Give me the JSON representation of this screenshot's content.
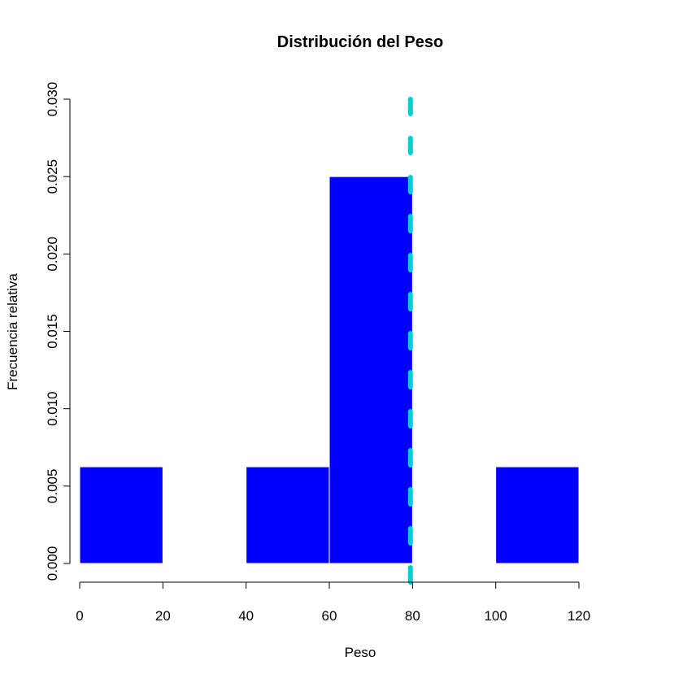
{
  "chart_data": {
    "type": "bar",
    "title": "Distribución del Peso",
    "xlabel": "Peso",
    "ylabel": "Frecuencia relativa",
    "xlim": [
      0,
      120
    ],
    "ylim": [
      0,
      0.03
    ],
    "x_ticks": [
      "0",
      "20",
      "40",
      "60",
      "80",
      "100",
      "120"
    ],
    "y_ticks": [
      "0.000",
      "0.005",
      "0.010",
      "0.015",
      "0.020",
      "0.025",
      "0.030"
    ],
    "bins": [
      {
        "from": 0,
        "to": 20,
        "value": 0.00625
      },
      {
        "from": 20,
        "to": 40,
        "value": 0
      },
      {
        "from": 40,
        "to": 60,
        "value": 0.00625
      },
      {
        "from": 60,
        "to": 80,
        "value": 0.025
      },
      {
        "from": 80,
        "to": 100,
        "value": 0
      },
      {
        "from": 100,
        "to": 120,
        "value": 0.00625
      }
    ],
    "bar_color": "#0000FF",
    "vline": {
      "x": 79.5,
      "style": "dashed",
      "color": "#00CED1"
    },
    "grid": false,
    "legend": "none"
  }
}
